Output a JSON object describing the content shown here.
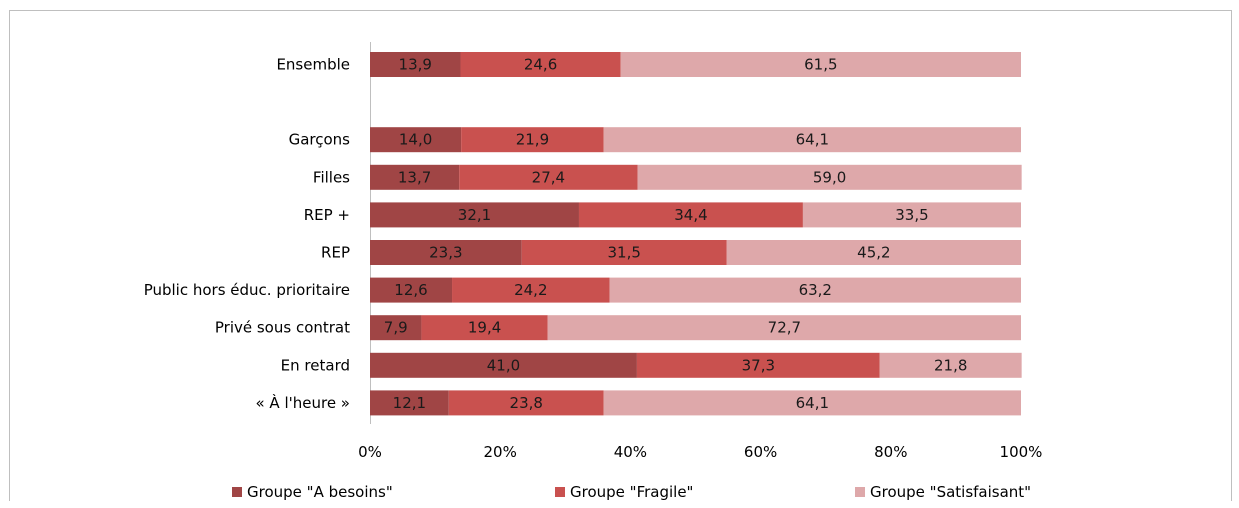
{
  "chart_data": {
    "type": "bar",
    "orientation": "horizontal",
    "stacked": "percent",
    "categories": [
      "Ensemble",
      "",
      "Garçons",
      "Filles",
      "REP +",
      "REP",
      "Public hors éduc. prioritaire",
      "Privé sous contrat",
      "En retard",
      "« À l'heure »"
    ],
    "series": [
      {
        "name": "Groupe \"A besoins\"",
        "color": "#a04545",
        "values": [
          13.9,
          null,
          14.0,
          13.7,
          32.1,
          23.3,
          12.6,
          7.9,
          41.0,
          12.1
        ],
        "labels": [
          "13,9",
          "",
          "14,0",
          "13,7",
          "32,1",
          "23,3",
          "12,6",
          "7,9",
          "41,0",
          "12,1"
        ]
      },
      {
        "name": "Groupe \"Fragile\"",
        "color": "#c9514f",
        "values": [
          24.6,
          null,
          21.9,
          27.4,
          34.4,
          31.5,
          24.2,
          19.4,
          37.3,
          23.8
        ],
        "labels": [
          "24,6",
          "",
          "21,9",
          "27,4",
          "34,4",
          "31,5",
          "24,2",
          "19,4",
          "37,3",
          "23,8"
        ]
      },
      {
        "name": "Groupe \"Satisfaisant\"",
        "color": "#dea8aa",
        "values": [
          61.5,
          null,
          64.1,
          59.0,
          33.5,
          45.2,
          63.2,
          72.7,
          21.8,
          64.1
        ],
        "labels": [
          "61,5",
          "",
          "64,1",
          "59,0",
          "33,5",
          "45,2",
          "63,2",
          "72,7",
          "21,8",
          "64,1"
        ]
      }
    ],
    "xlim": [
      0,
      100
    ],
    "xticks": [
      "0%",
      "20%",
      "40%",
      "60%",
      "80%",
      "100%"
    ],
    "legend_position": "bottom",
    "grid": false
  }
}
